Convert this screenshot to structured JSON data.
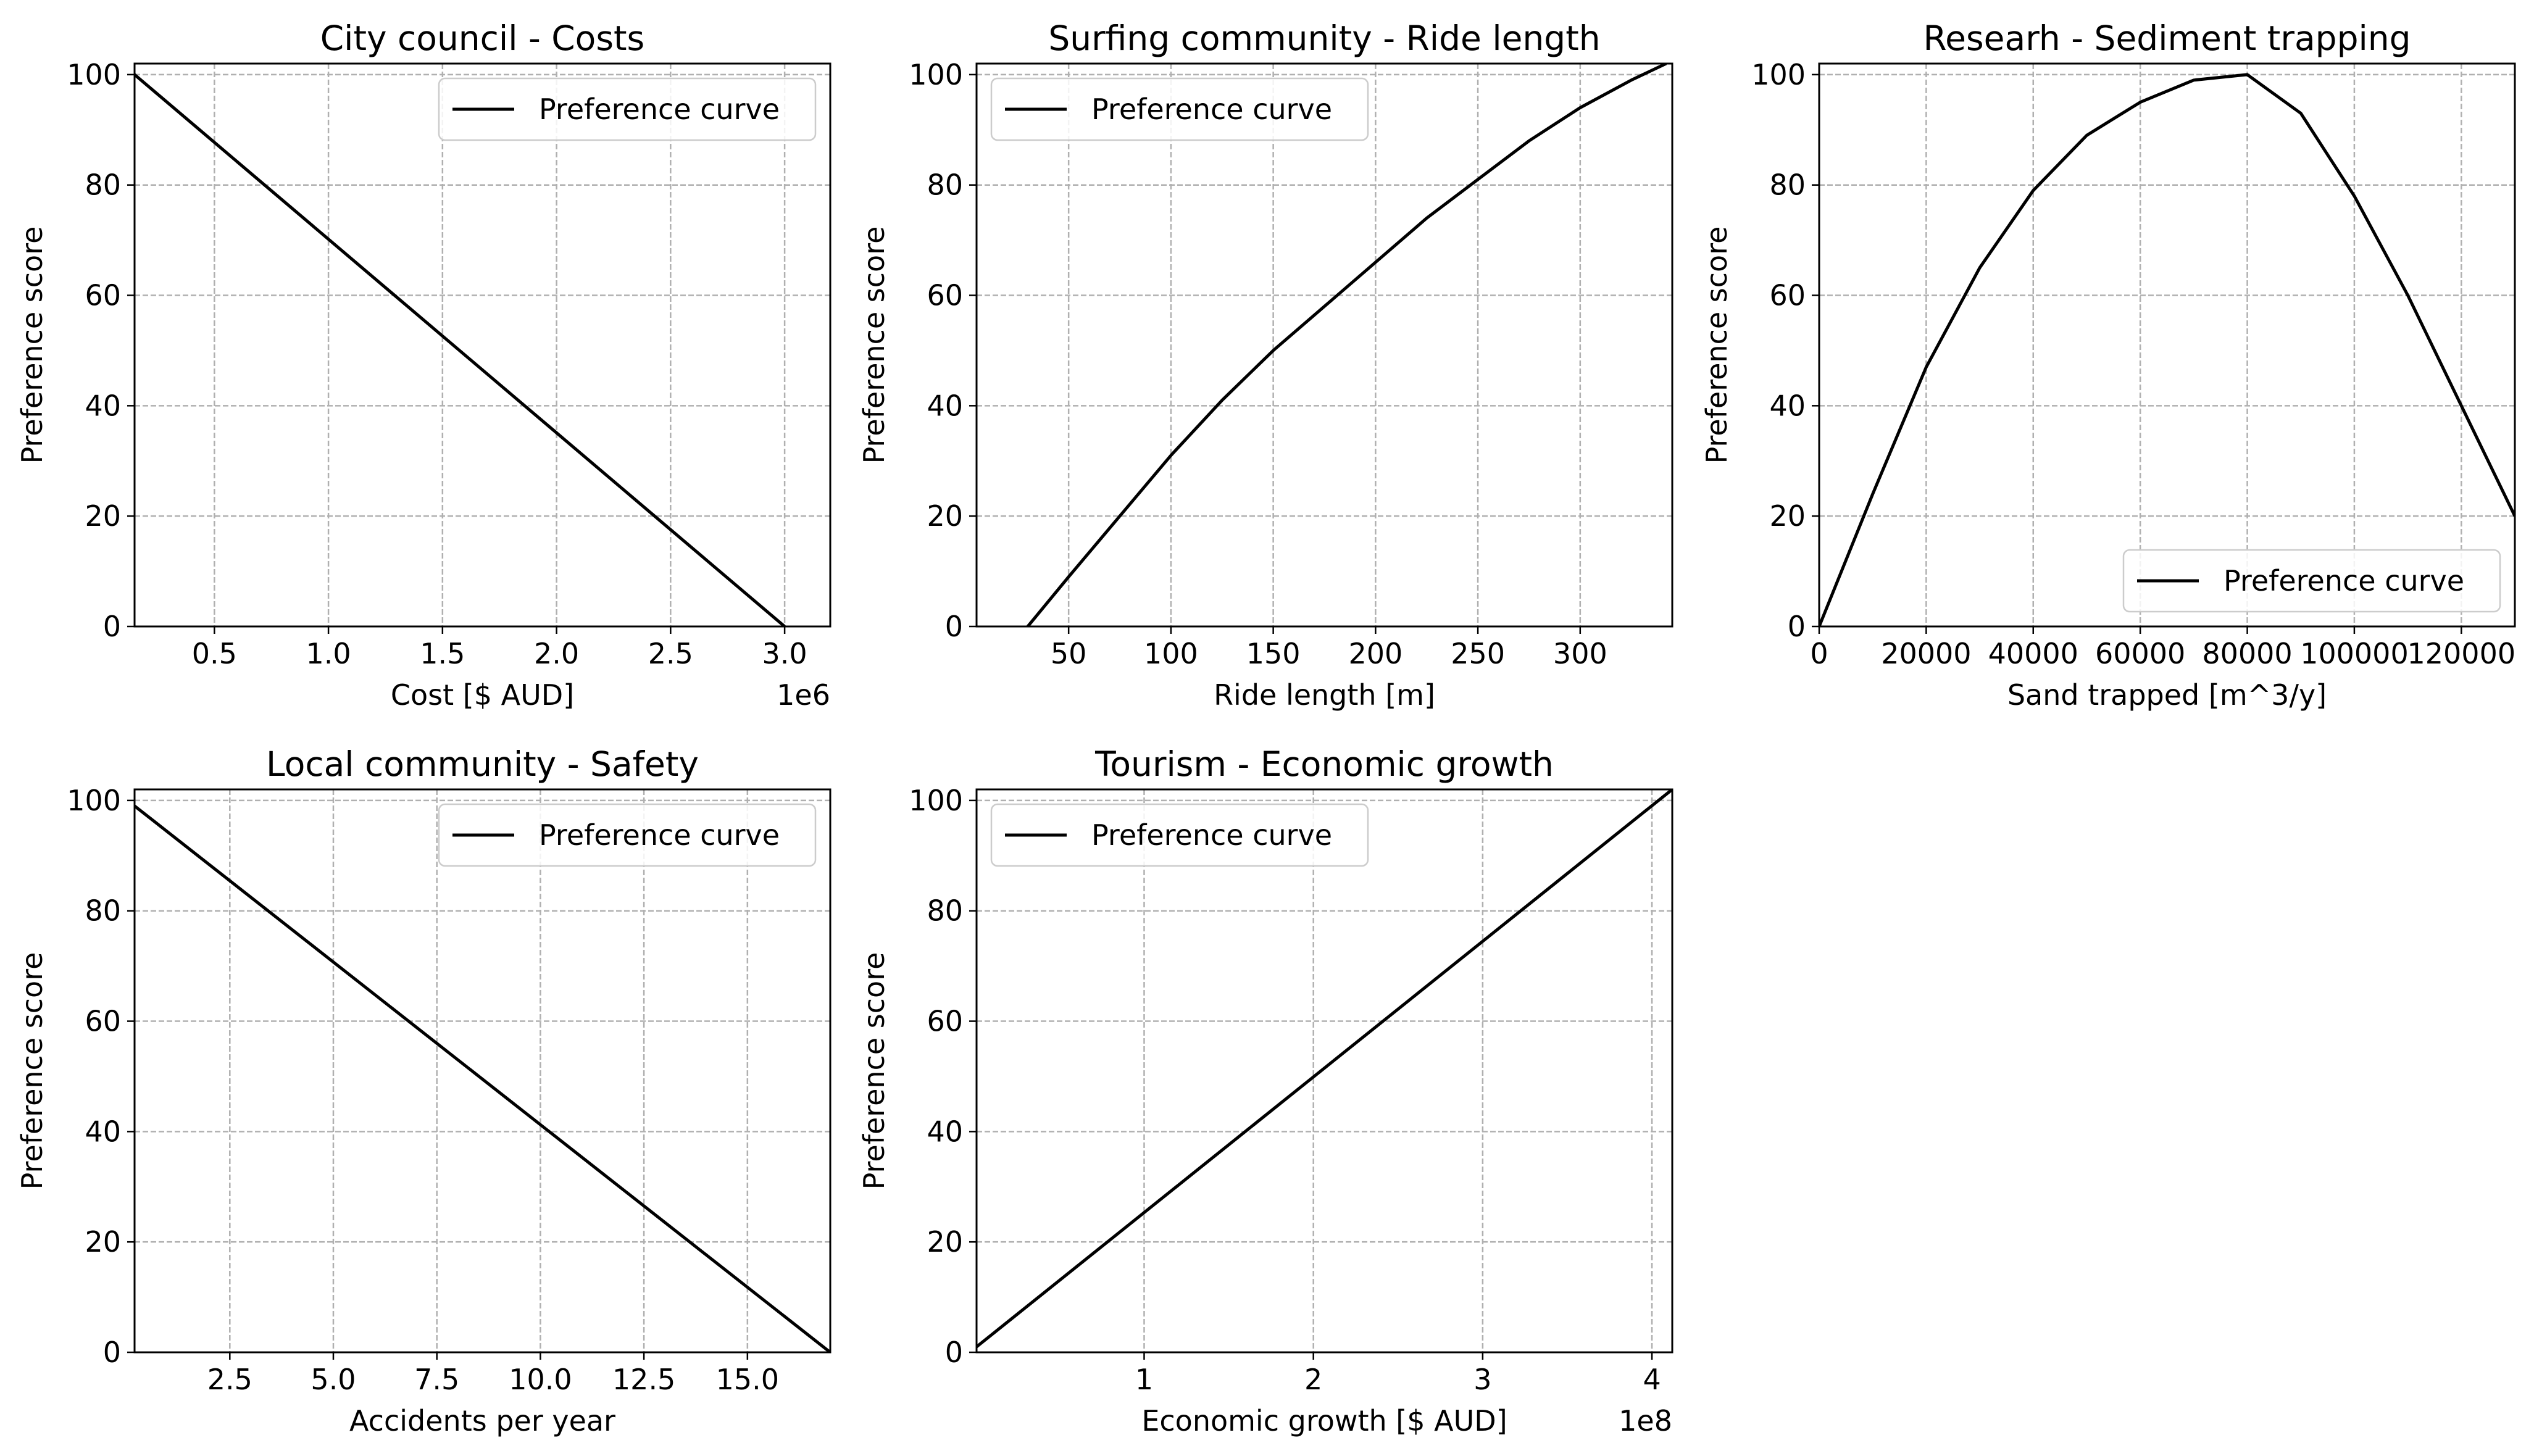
{
  "chart_data": [
    {
      "type": "line",
      "title": "City council - Costs",
      "xlabel": "Cost [$ AUD]",
      "ylabel": "Preference score",
      "x_offset_label": "1e6",
      "xlim": [
        150000,
        3200000
      ],
      "ylim": [
        0,
        102
      ],
      "xticks": [
        500000,
        1000000,
        1500000,
        2000000,
        2500000,
        3000000
      ],
      "xticklabels": [
        "0.5",
        "1.0",
        "1.5",
        "2.0",
        "2.5",
        "3.0"
      ],
      "yticks": [
        0,
        20,
        40,
        60,
        80,
        100
      ],
      "yticklabels": [
        "0",
        "20",
        "40",
        "60",
        "80",
        "100"
      ],
      "grid": true,
      "legend_position": "upper right",
      "series": [
        {
          "name": "Preference curve",
          "color": "#000000",
          "x": [
            150000,
            3000000
          ],
          "y": [
            100,
            0
          ]
        }
      ]
    },
    {
      "type": "line",
      "title": "Surfing community - Ride length",
      "xlabel": "Ride length [m]",
      "ylabel": "Preference score",
      "xlim": [
        5,
        345
      ],
      "ylim": [
        0,
        102
      ],
      "xticks": [
        50,
        100,
        150,
        200,
        250,
        300
      ],
      "xticklabels": [
        "50",
        "100",
        "150",
        "200",
        "250",
        "300"
      ],
      "yticks": [
        0,
        20,
        40,
        60,
        80,
        100
      ],
      "yticklabels": [
        "0",
        "20",
        "40",
        "60",
        "80",
        "100"
      ],
      "grid": true,
      "legend_position": "upper left",
      "series": [
        {
          "name": "Preference curve",
          "color": "#000000",
          "x": [
            30,
            50,
            75,
            100,
            125,
            150,
            175,
            200,
            225,
            250,
            275,
            300,
            325,
            342
          ],
          "y": [
            0,
            9,
            20,
            31,
            41,
            50,
            58,
            66,
            74,
            81,
            88,
            94,
            99,
            102
          ]
        }
      ]
    },
    {
      "type": "line",
      "title": "Researh - Sediment trapping",
      "xlabel": "Sand trapped [m^3/y]",
      "ylabel": "Preference score",
      "xlim": [
        0,
        130000
      ],
      "ylim": [
        0,
        102
      ],
      "xticks": [
        0,
        20000,
        40000,
        60000,
        80000,
        100000,
        120000
      ],
      "xticklabels": [
        "0",
        "20000",
        "40000",
        "60000",
        "80000",
        "100000",
        "120000"
      ],
      "yticks": [
        0,
        20,
        40,
        60,
        80,
        100
      ],
      "yticklabels": [
        "0",
        "20",
        "40",
        "60",
        "80",
        "100"
      ],
      "grid": true,
      "legend_position": "lower right",
      "series": [
        {
          "name": "Preference curve",
          "color": "#000000",
          "x": [
            0,
            10000,
            20000,
            30000,
            40000,
            50000,
            60000,
            70000,
            80000,
            90000,
            100000,
            110000,
            120000,
            130000
          ],
          "y": [
            0,
            24,
            47,
            65,
            79,
            89,
            95,
            99,
            100,
            93,
            78,
            60,
            40,
            20
          ]
        }
      ]
    },
    {
      "type": "line",
      "title": "Local community - Safety",
      "xlabel": "Accidents per year",
      "ylabel": "Preference score",
      "xlim": [
        0.2,
        17
      ],
      "ylim": [
        0,
        102
      ],
      "xticks": [
        2.5,
        5.0,
        7.5,
        10.0,
        12.5,
        15.0
      ],
      "xticklabels": [
        "2.5",
        "5.0",
        "7.5",
        "10.0",
        "12.5",
        "15.0"
      ],
      "yticks": [
        0,
        20,
        40,
        60,
        80,
        100
      ],
      "yticklabels": [
        "0",
        "20",
        "40",
        "60",
        "80",
        "100"
      ],
      "grid": true,
      "legend_position": "upper right",
      "series": [
        {
          "name": "Preference curve",
          "color": "#000000",
          "x": [
            0.2,
            17
          ],
          "y": [
            99,
            0
          ]
        }
      ]
    },
    {
      "type": "line",
      "title": "Tourism - Economic growth",
      "xlabel": "Economic growth [$ AUD]",
      "ylabel": "Preference score",
      "x_offset_label": "1e8",
      "xlim": [
        1000000,
        412000000
      ],
      "ylim": [
        0,
        102
      ],
      "xticks": [
        100000000,
        200000000,
        300000000,
        400000000
      ],
      "xticklabels": [
        "1",
        "2",
        "3",
        "4"
      ],
      "yticks": [
        0,
        20,
        40,
        60,
        80,
        100
      ],
      "yticklabels": [
        "0",
        "20",
        "40",
        "60",
        "80",
        "100"
      ],
      "grid": true,
      "legend_position": "upper left",
      "series": [
        {
          "name": "Preference curve",
          "color": "#000000",
          "x": [
            1000000,
            412000000
          ],
          "y": [
            1,
            102
          ]
        }
      ]
    }
  ]
}
